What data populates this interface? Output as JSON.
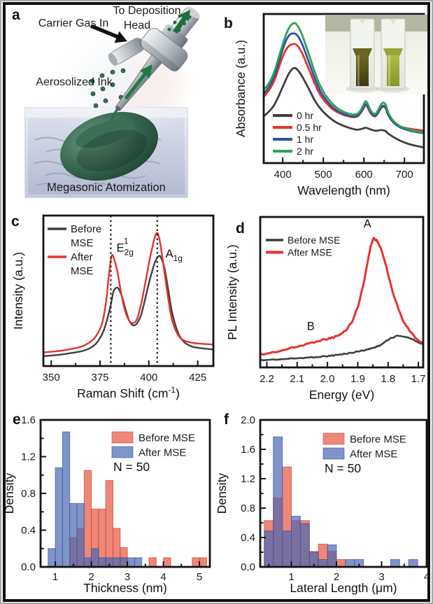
{
  "panels": {
    "a": {
      "label": "a",
      "annotations": {
        "carrier_gas": "Carrier Gas In",
        "deposition_line1": "To Deposition",
        "deposition_line2": "Head",
        "aerosolized_ink": "Aerosolized Ink",
        "megasonic": "Megasonic Atomization"
      }
    },
    "b": {
      "label": "b"
    },
    "c": {
      "label": "c"
    },
    "d": {
      "label": "d"
    },
    "e": {
      "label": "e"
    },
    "f": {
      "label": "f"
    }
  },
  "colors": {
    "line_black": "#3f3f3f",
    "line_red": "#e8312e",
    "line_blue": "#2d52a2",
    "line_green": "#2aa353",
    "hist_red": "#e8543f",
    "hist_blue": "#4a66b0"
  },
  "chart_data": [
    {
      "id": "b",
      "type": "line",
      "xlabel": "Wavelength (nm)",
      "ylabel": "Absorbance (a.u.)",
      "xlim": [
        353,
        748
      ],
      "ylim": [
        0,
        1.0
      ],
      "xticks": [
        400,
        500,
        600,
        700
      ],
      "xtick_labels": [
        "400",
        "500",
        "600",
        "700"
      ],
      "xminor": 50,
      "legend": {
        "items": [
          "0 hr",
          "0.5 hr",
          "1 hr",
          "2 hr"
        ],
        "fs": 14,
        "mlen": 28
      },
      "x": [
        353,
        362,
        371,
        380,
        389,
        398,
        407,
        415,
        422,
        428,
        434,
        441,
        449,
        458,
        468,
        479,
        492,
        506,
        520,
        534,
        548,
        562,
        574,
        584,
        592,
        599,
        604,
        609,
        615,
        622,
        629,
        636,
        643,
        649,
        654,
        660,
        668,
        677,
        688,
        700,
        714,
        730,
        748
      ],
      "series": [
        {
          "name": "0 hr",
          "color": "#3f3f3f",
          "lw": 2.8,
          "llw": 4,
          "y": [
            0.315,
            0.335,
            0.36,
            0.395,
            0.445,
            0.5,
            0.555,
            0.6,
            0.627,
            0.638,
            0.632,
            0.61,
            0.575,
            0.53,
            0.478,
            0.42,
            0.368,
            0.327,
            0.295,
            0.27,
            0.252,
            0.238,
            0.228,
            0.224,
            0.227,
            0.233,
            0.237,
            0.234,
            0.227,
            0.221,
            0.217,
            0.219,
            0.221,
            0.219,
            0.213,
            0.198,
            0.183,
            0.168,
            0.152,
            0.138,
            0.125,
            0.115,
            0.105
          ]
        },
        {
          "name": "0.5 hr",
          "color": "#e8312e",
          "lw": 2.8,
          "llw": 4,
          "y": [
            0.445,
            0.475,
            0.51,
            0.56,
            0.63,
            0.7,
            0.755,
            0.785,
            0.795,
            0.8,
            0.793,
            0.77,
            0.73,
            0.672,
            0.605,
            0.532,
            0.46,
            0.407,
            0.368,
            0.342,
            0.325,
            0.313,
            0.308,
            0.313,
            0.335,
            0.365,
            0.388,
            0.375,
            0.342,
            0.318,
            0.315,
            0.34,
            0.37,
            0.378,
            0.365,
            0.322,
            0.288,
            0.265,
            0.248,
            0.237,
            0.23,
            0.224,
            0.218
          ]
        },
        {
          "name": "1 hr",
          "color": "#2d52a2",
          "lw": 2.8,
          "llw": 4,
          "y": [
            0.465,
            0.495,
            0.535,
            0.59,
            0.665,
            0.745,
            0.815,
            0.855,
            0.868,
            0.87,
            0.862,
            0.835,
            0.79,
            0.725,
            0.65,
            0.568,
            0.487,
            0.428,
            0.383,
            0.352,
            0.332,
            0.318,
            0.312,
            0.317,
            0.34,
            0.372,
            0.395,
            0.382,
            0.347,
            0.322,
            0.318,
            0.345,
            0.376,
            0.385,
            0.372,
            0.325,
            0.288,
            0.262,
            0.242,
            0.228,
            0.217,
            0.208,
            0.2
          ]
        },
        {
          "name": "2 hr",
          "color": "#2aa353",
          "lw": 2.8,
          "llw": 4,
          "y": [
            0.49,
            0.52,
            0.56,
            0.62,
            0.7,
            0.78,
            0.855,
            0.905,
            0.93,
            0.94,
            0.93,
            0.9,
            0.85,
            0.78,
            0.7,
            0.61,
            0.52,
            0.455,
            0.405,
            0.37,
            0.347,
            0.332,
            0.325,
            0.33,
            0.355,
            0.39,
            0.415,
            0.4,
            0.362,
            0.335,
            0.332,
            0.36,
            0.395,
            0.405,
            0.39,
            0.34,
            0.3,
            0.272,
            0.25,
            0.235,
            0.223,
            0.213,
            0.205
          ]
        }
      ]
    },
    {
      "id": "c",
      "type": "line",
      "xlabel": [
        {
          "text": "Raman Shift (cm"
        },
        {
          "text": "-1",
          "sup": true
        },
        {
          "text": ")"
        }
      ],
      "ylabel": "Intensity (a.u.)",
      "xlim": [
        346,
        433
      ],
      "ylim": [
        0,
        1.0
      ],
      "xticks": [
        350,
        375,
        400,
        425
      ],
      "xtick_labels": [
        "350",
        "375",
        "400",
        "425"
      ],
      "xminor": 12.5,
      "dashed_x": [
        380.5,
        404.3
      ],
      "annotations": [
        {
          "base": "E",
          "sup": "1",
          "sub": "2g",
          "x": 383.4,
          "y": 0.76,
          "anchor": "start"
        },
        {
          "base": "A",
          "sub": "1g",
          "x": 408.5,
          "y": 0.72,
          "anchor": "start"
        }
      ],
      "legend": {
        "items": [
          [
            "Before",
            "MSE"
          ],
          [
            "After",
            "MSE"
          ]
        ],
        "fs": 15,
        "mlen": 27
      },
      "x": [
        346,
        350,
        354,
        358,
        362,
        366,
        370,
        373,
        376,
        378,
        380,
        381,
        382,
        384,
        386,
        388,
        390,
        392,
        394,
        396,
        398,
        400,
        401,
        402,
        403,
        404,
        405,
        406,
        408,
        410,
        412,
        415,
        418,
        422,
        427,
        433
      ],
      "series": [
        {
          "name": "Before MSE",
          "color": "#3f3f3f",
          "lw": 2.4,
          "llw": 3.5,
          "y": [
            0.065,
            0.07,
            0.075,
            0.082,
            0.09,
            0.1,
            0.12,
            0.15,
            0.21,
            0.28,
            0.38,
            0.44,
            0.5,
            0.52,
            0.47,
            0.38,
            0.3,
            0.27,
            0.285,
            0.34,
            0.44,
            0.55,
            0.6,
            0.645,
            0.685,
            0.715,
            0.73,
            0.725,
            0.65,
            0.5,
            0.35,
            0.22,
            0.16,
            0.13,
            0.118,
            0.11
          ]
        },
        {
          "name": "After MSE",
          "color": "#e8312e",
          "lw": 2.4,
          "llw": 3.5,
          "y": [
            0.09,
            0.095,
            0.1,
            0.108,
            0.118,
            0.132,
            0.16,
            0.2,
            0.28,
            0.42,
            0.66,
            0.735,
            0.72,
            0.62,
            0.47,
            0.36,
            0.3,
            0.285,
            0.315,
            0.41,
            0.54,
            0.68,
            0.745,
            0.8,
            0.855,
            0.885,
            0.865,
            0.8,
            0.62,
            0.44,
            0.3,
            0.205,
            0.17,
            0.155,
            0.148,
            0.143
          ]
        }
      ]
    },
    {
      "id": "d",
      "type": "line",
      "xlabel": "Energy (eV)",
      "ylabel": "PL Intensity (a.u.)",
      "xlim": [
        2.222,
        1.684
      ],
      "ylim": [
        0,
        1.0
      ],
      "xticks": [
        2.2,
        2.1,
        2.0,
        1.9,
        1.8,
        1.7
      ],
      "xtick_labels": [
        "2.2",
        "2.1",
        "2.0",
        "1.9",
        "1.8",
        "1.7"
      ],
      "xminor": 0.05,
      "annotations": [
        {
          "base": "A",
          "x": 1.868,
          "y": 0.93
        },
        {
          "base": "B",
          "x": 2.055,
          "y": 0.25
        }
      ],
      "legend": {
        "items": [
          "Before MSE",
          "After MSE"
        ],
        "fs": 14,
        "mlen": 25
      },
      "x": [
        2.22,
        2.18,
        2.14,
        2.1,
        2.06,
        2.03,
        2.0,
        1.98,
        1.96,
        1.94,
        1.92,
        1.9,
        1.885,
        1.87,
        1.858,
        1.848,
        1.838,
        1.825,
        1.81,
        1.79,
        1.77,
        1.75,
        1.73,
        1.71,
        1.695,
        1.684
      ],
      "series": [
        {
          "name": "Before MSE",
          "color": "#3f3f3f",
          "lw": 2.6,
          "llw": 3.5,
          "noise": 1.4,
          "y": [
            0.048,
            0.052,
            0.056,
            0.061,
            0.066,
            0.071,
            0.076,
            0.08,
            0.085,
            0.091,
            0.098,
            0.106,
            0.112,
            0.118,
            0.125,
            0.131,
            0.138,
            0.148,
            0.17,
            0.195,
            0.21,
            0.207,
            0.195,
            0.178,
            0.162,
            0.155
          ]
        },
        {
          "name": "After MSE",
          "color": "#e8312e",
          "lw": 3,
          "llw": 4,
          "noise": 2.4,
          "y": [
            0.085,
            0.1,
            0.118,
            0.138,
            0.16,
            0.178,
            0.19,
            0.2,
            0.215,
            0.245,
            0.3,
            0.4,
            0.52,
            0.67,
            0.8,
            0.86,
            0.845,
            0.8,
            0.7,
            0.54,
            0.41,
            0.31,
            0.245,
            0.2,
            0.172,
            0.162
          ]
        }
      ]
    },
    {
      "id": "e",
      "type": "hist",
      "xlabel": "Thickness (nm)",
      "ylabel": "Density",
      "xlim": [
        0.59,
        5.29
      ],
      "ylim": [
        0,
        1.6
      ],
      "xticks": [
        1,
        2,
        3,
        4,
        5
      ],
      "xtick_labels": [
        "1",
        "2",
        "3",
        "4",
        "5"
      ],
      "xminor": 0.5,
      "yticks": [
        0,
        0.4,
        0.8,
        1.2,
        1.6
      ],
      "ytick_labels": [
        "0.0",
        "0.4",
        "0.8",
        "1.2",
        "1.6"
      ],
      "yminor": 0.2,
      "bin_width": 0.2,
      "n_label": "N = 50",
      "legend": {
        "items": [
          "Before MSE",
          "After MSE"
        ]
      },
      "series": [
        {
          "name": "Before MSE",
          "color": "#e8543f",
          "edge": "#cf4733",
          "bins": [
            [
              1.4,
              0.32
            ],
            [
              1.6,
              0.42
            ],
            [
              1.8,
              1.05
            ],
            [
              2.0,
              0.63
            ],
            [
              2.2,
              0.63
            ],
            [
              2.4,
              0.94
            ],
            [
              2.6,
              0.42
            ],
            [
              2.8,
              0.21
            ],
            [
              3.6,
              0.1
            ],
            [
              4.0,
              0.1
            ],
            [
              4.8,
              0.1
            ],
            [
              5.0,
              0.1
            ]
          ]
        },
        {
          "name": "After MSE",
          "color": "#4a66b0",
          "edge": "#3b57a8",
          "bins": [
            [
              0.8,
              0.2
            ],
            [
              1.0,
              1.08
            ],
            [
              1.2,
              1.47
            ],
            [
              1.4,
              0.69
            ],
            [
              1.6,
              0.69
            ],
            [
              1.8,
              0.1
            ],
            [
              2.0,
              0.2
            ],
            [
              2.2,
              0.1
            ],
            [
              2.4,
              0.1
            ],
            [
              2.6,
              0.1
            ],
            [
              2.8,
              0.1
            ],
            [
              3.0,
              0.1
            ],
            [
              3.2,
              0.1
            ]
          ]
        }
      ]
    },
    {
      "id": "f",
      "type": "hist",
      "xlabel": "Lateral Length (μm)",
      "ylabel": "Density",
      "xlim": [
        0.31,
        4.0
      ],
      "ylim": [
        0,
        2.0
      ],
      "xticks": [
        1,
        2,
        3,
        4
      ],
      "xtick_labels": [
        "1",
        "2",
        "3",
        "4"
      ],
      "xminor": 0.5,
      "yticks": [
        0,
        0.4,
        0.8,
        1.2,
        1.6,
        2.0
      ],
      "ytick_labels": [
        "0.0",
        "0.4",
        "0.8",
        "1.2",
        "1.6",
        "2.0"
      ],
      "yminor": 0.2,
      "bin_width": 0.2,
      "n_label": "N = 50",
      "legend": {
        "items": [
          "Before MSE",
          "After MSE"
        ]
      },
      "series": [
        {
          "name": "Before MSE",
          "color": "#e8543f",
          "edge": "#cf4733",
          "bins": [
            [
              0.4,
              0.63
            ],
            [
              0.6,
              0.94
            ],
            [
              0.8,
              1.36
            ],
            [
              1.0,
              0.63
            ],
            [
              1.2,
              0.63
            ],
            [
              1.4,
              0.21
            ],
            [
              1.6,
              0.31
            ],
            [
              1.8,
              0.21
            ],
            [
              2.0,
              0.1
            ]
          ]
        },
        {
          "name": "After MSE",
          "color": "#4a66b0",
          "edge": "#3b57a8",
          "bins": [
            [
              0.4,
              0.49
            ],
            [
              0.6,
              1.77
            ],
            [
              0.8,
              0.49
            ],
            [
              1.0,
              0.69
            ],
            [
              1.2,
              0.59
            ],
            [
              1.4,
              0.2
            ],
            [
              1.6,
              0.1
            ],
            [
              1.8,
              0.3
            ],
            [
              2.2,
              0.1
            ],
            [
              2.4,
              0.1
            ],
            [
              3.2,
              0.1
            ],
            [
              3.6,
              0.1
            ]
          ]
        }
      ]
    }
  ]
}
